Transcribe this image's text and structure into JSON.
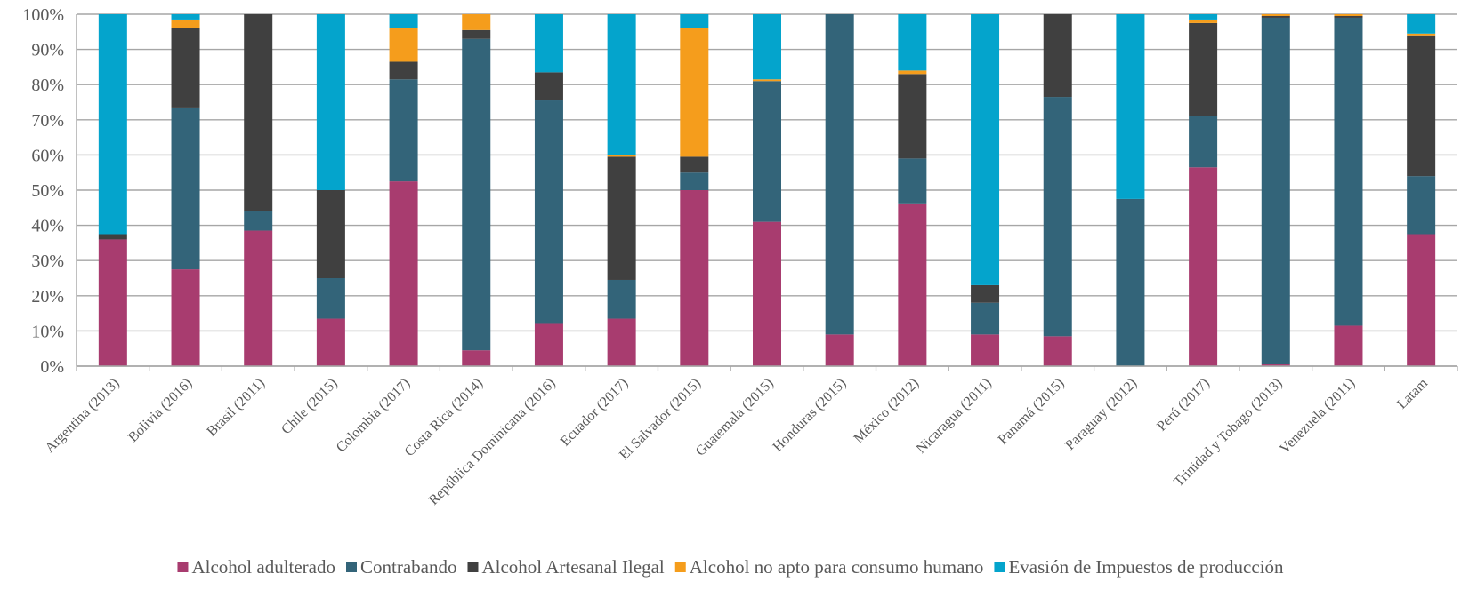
{
  "chart_data": {
    "type": "bar",
    "stacked": true,
    "percent": true,
    "title": "",
    "xlabel": "",
    "ylabel": "",
    "ylim": [
      0,
      100
    ],
    "y_ticks": [
      "0%",
      "10%",
      "20%",
      "30%",
      "40%",
      "50%",
      "60%",
      "70%",
      "80%",
      "90%",
      "100%"
    ],
    "grid": true,
    "legend_position": "bottom",
    "categories": [
      "Argentina (2013)",
      "Bolivia (2016)",
      "Brasil (2011)",
      "Chile (2015)",
      "Colombia (2017)",
      "Costa Rica (2014)",
      "República Dominicana (2016)",
      "Ecuador (2017)",
      "El Salvador (2015)",
      "Guatemala (2015)",
      "Honduras (2015)",
      "México (2012)",
      "Nicaragua (2011)",
      "Panamá (2015)",
      "Paraguay (2012)",
      "Perú (2017)",
      "Trinidad y Tobago (2013)",
      "Venezuela (2011)",
      "Latam"
    ],
    "series": [
      {
        "name": "Alcohol adulterado",
        "color": "#a83c6f",
        "values": [
          36,
          27.5,
          38.5,
          13.5,
          52.5,
          4.5,
          12,
          13.5,
          50,
          41,
          9,
          46,
          9,
          8.5,
          0,
          56.5,
          0.5,
          11.5,
          37.5
        ]
      },
      {
        "name": "Contrabando",
        "color": "#336479",
        "values": [
          0,
          46,
          5.5,
          11.5,
          29,
          88.5,
          63.5,
          11,
          5,
          40,
          91,
          13,
          9,
          68,
          47.5,
          14.5,
          98.5,
          87.5,
          16.5
        ]
      },
      {
        "name": "Alcohol Artesanal Ilegal",
        "color": "#404040",
        "values": [
          1.5,
          22.5,
          56,
          25,
          5,
          2.5,
          8,
          35,
          4.5,
          0,
          0,
          24,
          5,
          23.5,
          0,
          26.5,
          0.5,
          0.5,
          40
        ]
      },
      {
        "name": "Alcohol no apto para consumo humano",
        "color": "#f59d1c",
        "values": [
          0,
          2.5,
          0,
          0,
          9.5,
          4.5,
          0,
          0.5,
          36.5,
          0.5,
          0,
          1,
          0,
          0,
          0,
          1,
          0.5,
          0.5,
          0.5
        ]
      },
      {
        "name": "Evasión de Impuestos de producción",
        "color": "#04a4cc",
        "values": [
          62.5,
          1.5,
          0,
          50,
          4,
          0,
          16.5,
          40,
          4,
          18.5,
          0,
          16,
          77,
          0,
          52.5,
          1.5,
          0,
          0,
          5.5
        ]
      }
    ]
  }
}
